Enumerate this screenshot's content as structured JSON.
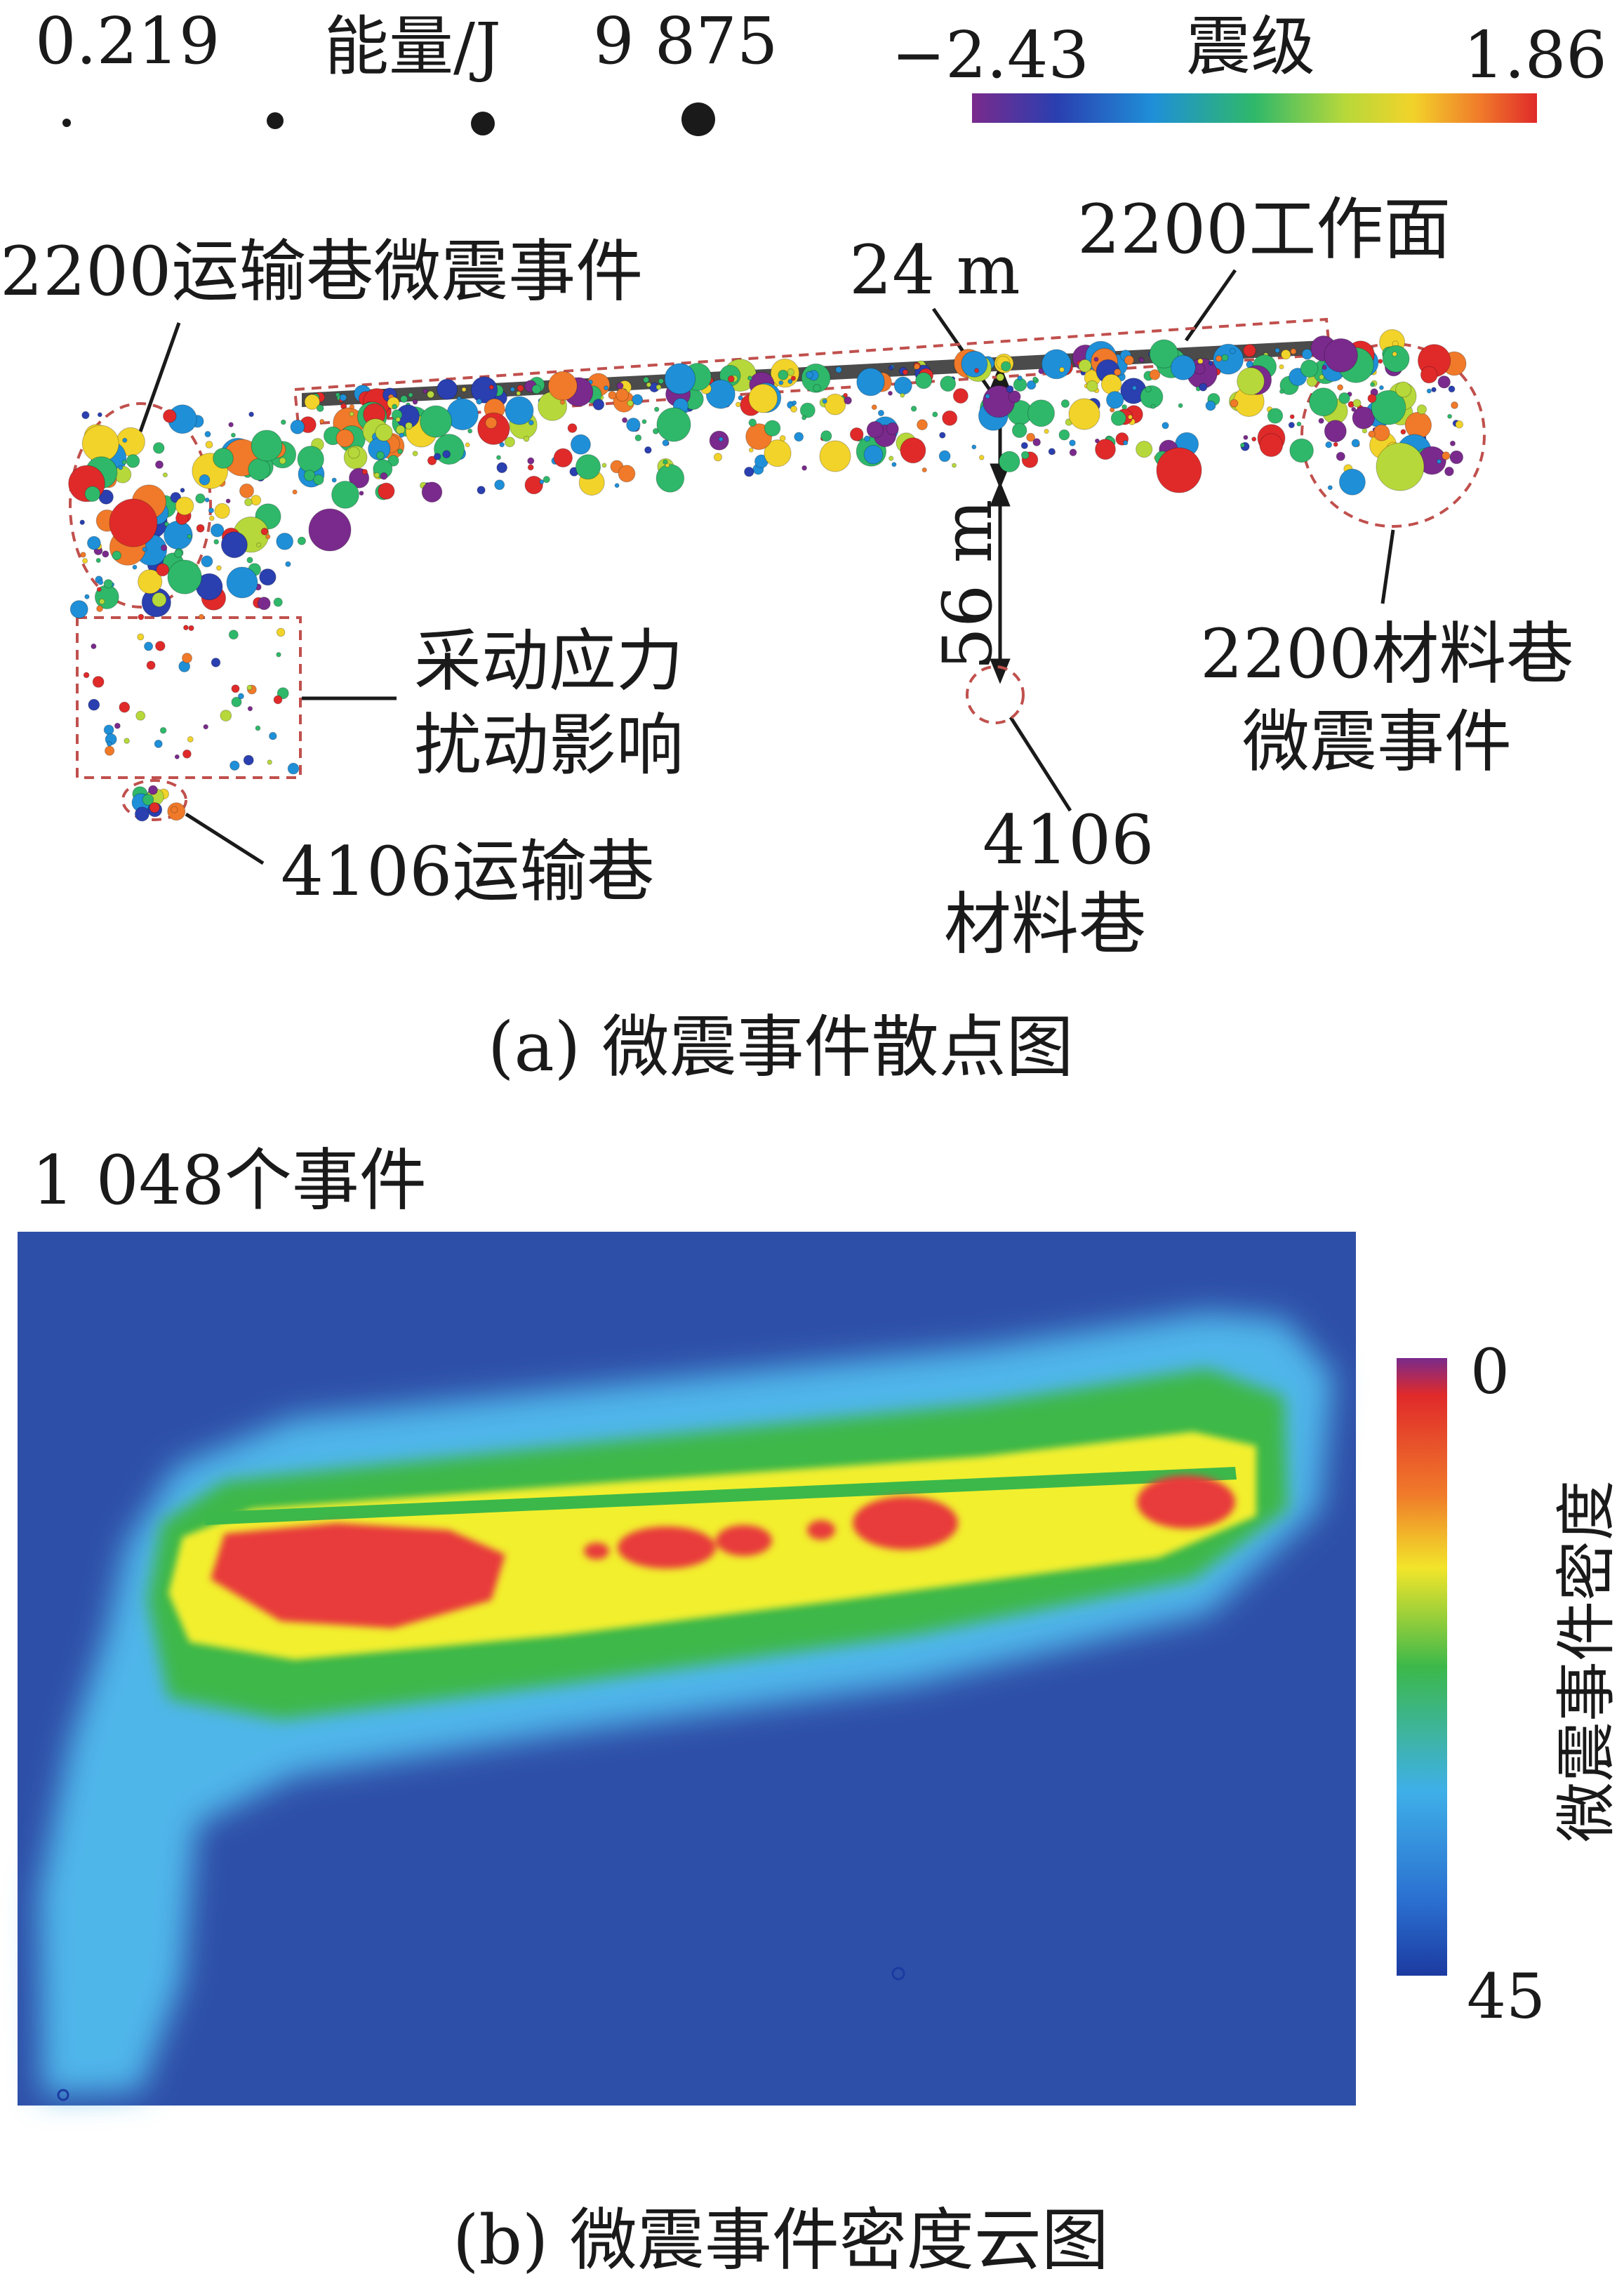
{
  "panel_a": {
    "legend_energy": {
      "min_label": "0.219",
      "title": "能量/J",
      "max_label": "9 875"
    },
    "legend_magnitude": {
      "min_label": "−2.43",
      "title": "震级",
      "max_label": "1.86"
    },
    "labels": {
      "transport_roadway_events": "2200运输巷微震事件",
      "working_face": "2200工作面",
      "dist_24": "24 m",
      "dist_56": "56 m",
      "mining_stress_line1": "采动应力",
      "mining_stress_line2": "扰动影响",
      "material_roadway_events_line1": "2200材料巷",
      "material_roadway_events_line2": "微震事件",
      "roadway_4106_transport": "4106运输巷",
      "roadway_4106_material_line1": "4106",
      "roadway_4106_material_line2": "材料巷"
    },
    "caption": "(a)  微震事件散点图",
    "colors": {
      "dashed_region": "#c0504d"
    }
  },
  "panel_b": {
    "event_count": "1 048个事件",
    "colorbar": {
      "top_label": "0",
      "bottom_label": "45",
      "title": "微震事件密度"
    },
    "caption": "(b)  微震事件密度云图",
    "colors": {
      "background": "#2e4fa8",
      "low": "#3fb0e8",
      "mid": "#3cb84a",
      "high_yellow": "#f2ef2e",
      "peak": "#e83a3a"
    }
  }
}
